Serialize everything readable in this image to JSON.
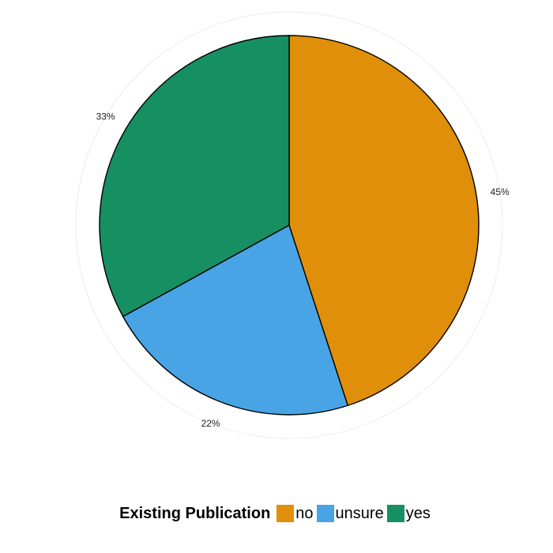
{
  "chart_data": {
    "type": "pie",
    "categories": [
      "no",
      "unsure",
      "yes"
    ],
    "values": [
      45,
      22,
      33
    ],
    "labels": [
      "45%",
      "22%",
      "33%"
    ],
    "colors": [
      "#E08F0A",
      "#48A4E4",
      "#168F62"
    ],
    "legend": {
      "title": "Existing Publication",
      "position": "bottom"
    },
    "grid": true
  }
}
